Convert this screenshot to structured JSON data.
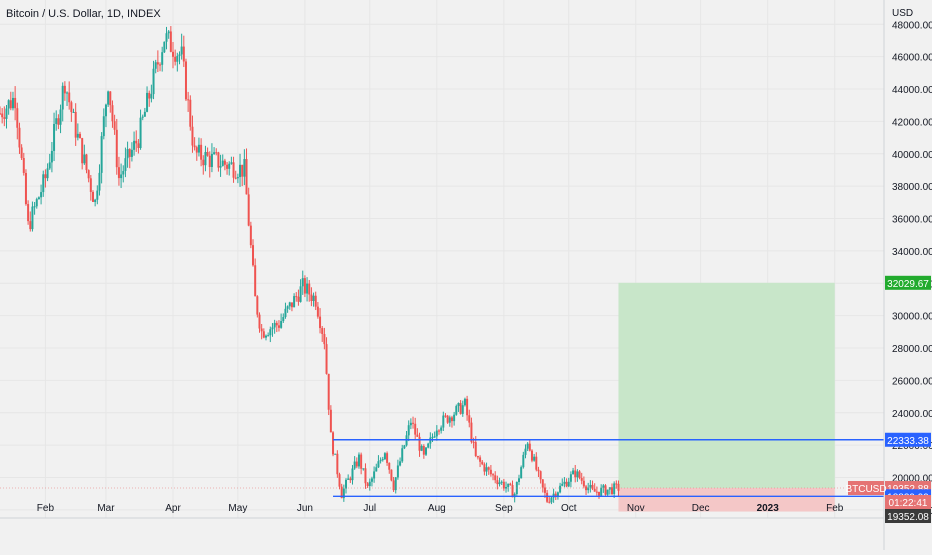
{
  "header": {
    "title": "Bitcoin / U.S. Dollar, 1D, INDEX"
  },
  "price_axis": {
    "unit": "USD",
    "ticks": [
      "48000.00",
      "46000.00",
      "44000.00",
      "42000.00",
      "40000.00",
      "38000.00",
      "36000.00",
      "34000.00",
      "32000.00",
      "30000.00",
      "28000.00",
      "26000.00",
      "24000.00",
      "22000.00",
      "20000.00",
      "18000.00"
    ]
  },
  "time_axis": {
    "ticks": [
      "Feb",
      "Mar",
      "Apr",
      "May",
      "Jun",
      "Jul",
      "Aug",
      "Sep",
      "Oct",
      "Nov",
      "Dec",
      "2023",
      "Feb"
    ]
  },
  "badges": {
    "target": "32029.67",
    "level_top": "22333.38",
    "symbol": "BTCUSD",
    "last_price": "19352.88",
    "countdown": "01:22:41",
    "prev_close": "19352.08",
    "level_bottom": "18839.99"
  },
  "colors": {
    "up": "#26a69a",
    "down": "#ef5350",
    "line": "#2962ff",
    "profit_zone": "#c8e6c9",
    "loss_zone": "#f4c7c7",
    "target_badge": "#22ab2e",
    "last_price_badge": "#e57373"
  },
  "chart_data": {
    "type": "candlestick",
    "title": "Bitcoin / U.S. Dollar, 1D, INDEX",
    "ylabel": "USD",
    "ylim": [
      17500,
      49500
    ],
    "x_range": [
      "2022-01-11",
      "2023-02-15"
    ],
    "horizontal_levels": [
      22333.38,
      18839.99
    ],
    "position": {
      "type": "long",
      "start": "2022-10-24",
      "end": "2023-02-01",
      "entry": 19352.88,
      "target": 32029.67,
      "stop": 17900
    },
    "last_price": 19352.88,
    "anchors": [
      [
        "2022-01-11",
        42500
      ],
      [
        "2022-01-18",
        43500
      ],
      [
        "2022-01-24",
        35500
      ],
      [
        "2022-02-01",
        38500
      ],
      [
        "2022-02-10",
        44500
      ],
      [
        "2022-02-14",
        42000
      ],
      [
        "2022-02-24",
        37000
      ],
      [
        "2022-03-02",
        44500
      ],
      [
        "2022-03-07",
        38500
      ],
      [
        "2022-03-16",
        41000
      ],
      [
        "2022-03-28",
        47200
      ],
      [
        "2022-04-05",
        46000
      ],
      [
        "2022-04-11",
        40000
      ],
      [
        "2022-04-22",
        39500
      ],
      [
        "2022-05-04",
        39000
      ],
      [
        "2022-05-09",
        31000
      ],
      [
        "2022-05-12",
        29000
      ],
      [
        "2022-05-20",
        29500
      ],
      [
        "2022-05-31",
        31800
      ],
      [
        "2022-06-06",
        31000
      ],
      [
        "2022-06-10",
        28500
      ],
      [
        "2022-06-13",
        22500
      ],
      [
        "2022-06-18",
        19000
      ],
      [
        "2022-06-26",
        21200
      ],
      [
        "2022-06-30",
        19300
      ],
      [
        "2022-07-08",
        21700
      ],
      [
        "2022-07-12",
        19500
      ],
      [
        "2022-07-18",
        22500
      ],
      [
        "2022-07-20",
        23500
      ],
      [
        "2022-07-26",
        21200
      ],
      [
        "2022-08-01",
        23200
      ],
      [
        "2022-08-14",
        24500
      ],
      [
        "2022-08-19",
        21200
      ],
      [
        "2022-08-26",
        20200
      ],
      [
        "2022-09-06",
        19000
      ],
      [
        "2022-09-12",
        22300
      ],
      [
        "2022-09-18",
        19600
      ],
      [
        "2022-09-21",
        18600
      ],
      [
        "2022-10-04",
        20300
      ],
      [
        "2022-10-12",
        19100
      ],
      [
        "2022-10-24",
        19352
      ]
    ]
  }
}
